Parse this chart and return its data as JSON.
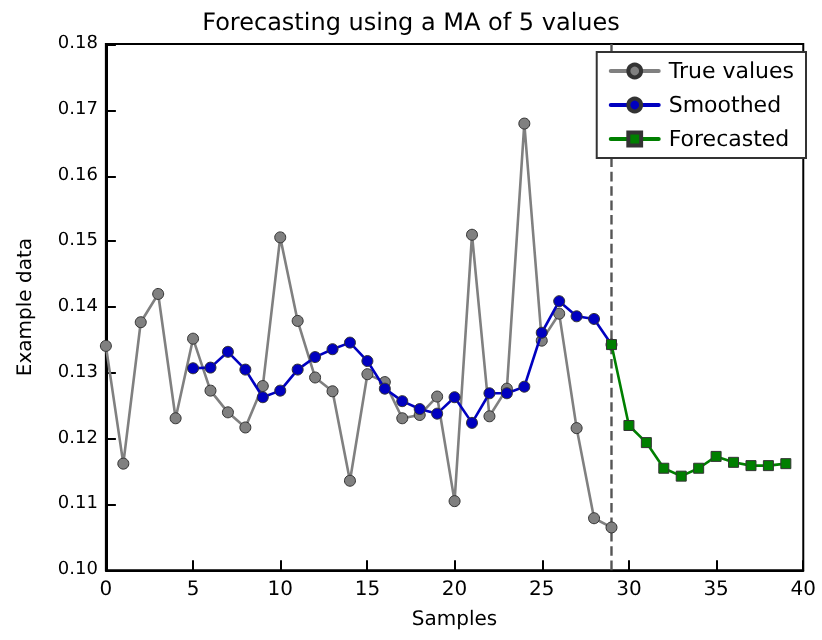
{
  "chart_data": {
    "type": "line",
    "title": "Forecasting using a MA of 5 values",
    "xlabel": "Samples",
    "ylabel": "Example data",
    "xlim": [
      0,
      40
    ],
    "xticks": [
      0,
      5,
      10,
      15,
      20,
      25,
      30,
      35,
      40
    ],
    "ylim": [
      0.1,
      0.18
    ],
    "yticks": [
      {
        "value": 0.1,
        "label": "0.10"
      },
      {
        "value": 0.11,
        "label": "0.11"
      },
      {
        "value": 0.12,
        "label": "0.12"
      },
      {
        "value": 0.13,
        "label": "0.13"
      },
      {
        "value": 0.14,
        "label": "0.14"
      },
      {
        "value": 0.15,
        "label": "0.15"
      },
      {
        "value": 0.16,
        "label": "0.16"
      },
      {
        "value": 0.17,
        "label": "0.17"
      },
      {
        "value": 0.18,
        "label": "0.18"
      }
    ],
    "grid": false,
    "legend": "top right",
    "line_style": "solid",
    "ref_lines": [
      {
        "axis": "x",
        "value": 29,
        "color": "#555555",
        "line_style": "dashed"
      }
    ],
    "series": [
      {
        "name": "True values",
        "color": "#808080",
        "marker": "circle",
        "x": [
          0,
          1,
          2,
          3,
          4,
          5,
          6,
          7,
          8,
          9,
          10,
          11,
          12,
          13,
          14,
          15,
          16,
          17,
          18,
          19,
          20,
          21,
          22,
          23,
          24,
          25,
          26,
          27,
          28,
          29
        ],
        "values": [
          0.1341,
          0.1162,
          0.1377,
          0.142,
          0.1231,
          0.1352,
          0.1273,
          0.124,
          0.1217,
          0.128,
          0.1506,
          0.1379,
          0.1293,
          0.1272,
          0.1136,
          0.1298,
          0.1286,
          0.1231,
          0.1236,
          0.1264,
          0.1105,
          0.151,
          0.1234,
          0.1276,
          0.1679,
          0.1349,
          0.139,
          0.1216,
          0.1079,
          0.1065
        ]
      },
      {
        "name": "Smoothed",
        "color": "#0000c0",
        "marker": "circle",
        "x": [
          5,
          6,
          7,
          8,
          9,
          10,
          11,
          12,
          13,
          14,
          15,
          16,
          17,
          18,
          19,
          20,
          21,
          22,
          23,
          24,
          25,
          26,
          27,
          28,
          29
        ],
        "values": [
          0.1307,
          0.1308,
          0.1332,
          0.1305,
          0.1263,
          0.1273,
          0.1305,
          0.1324,
          0.1336,
          0.1346,
          0.1318,
          0.1276,
          0.1257,
          0.1245,
          0.1238,
          0.1263,
          0.1224,
          0.1269,
          0.1269,
          0.1279,
          0.1361,
          0.1409,
          0.1386,
          0.1382,
          0.1343
        ]
      },
      {
        "name": "Forecasted",
        "color": "#007f00",
        "marker": "square",
        "x": [
          29,
          30,
          31,
          32,
          33,
          34,
          35,
          36,
          37,
          38,
          39
        ],
        "values": [
          0.1343,
          0.122,
          0.1194,
          0.1155,
          0.1143,
          0.1155,
          0.1173,
          0.1164,
          0.1159,
          0.1159,
          0.1162
        ]
      }
    ]
  }
}
